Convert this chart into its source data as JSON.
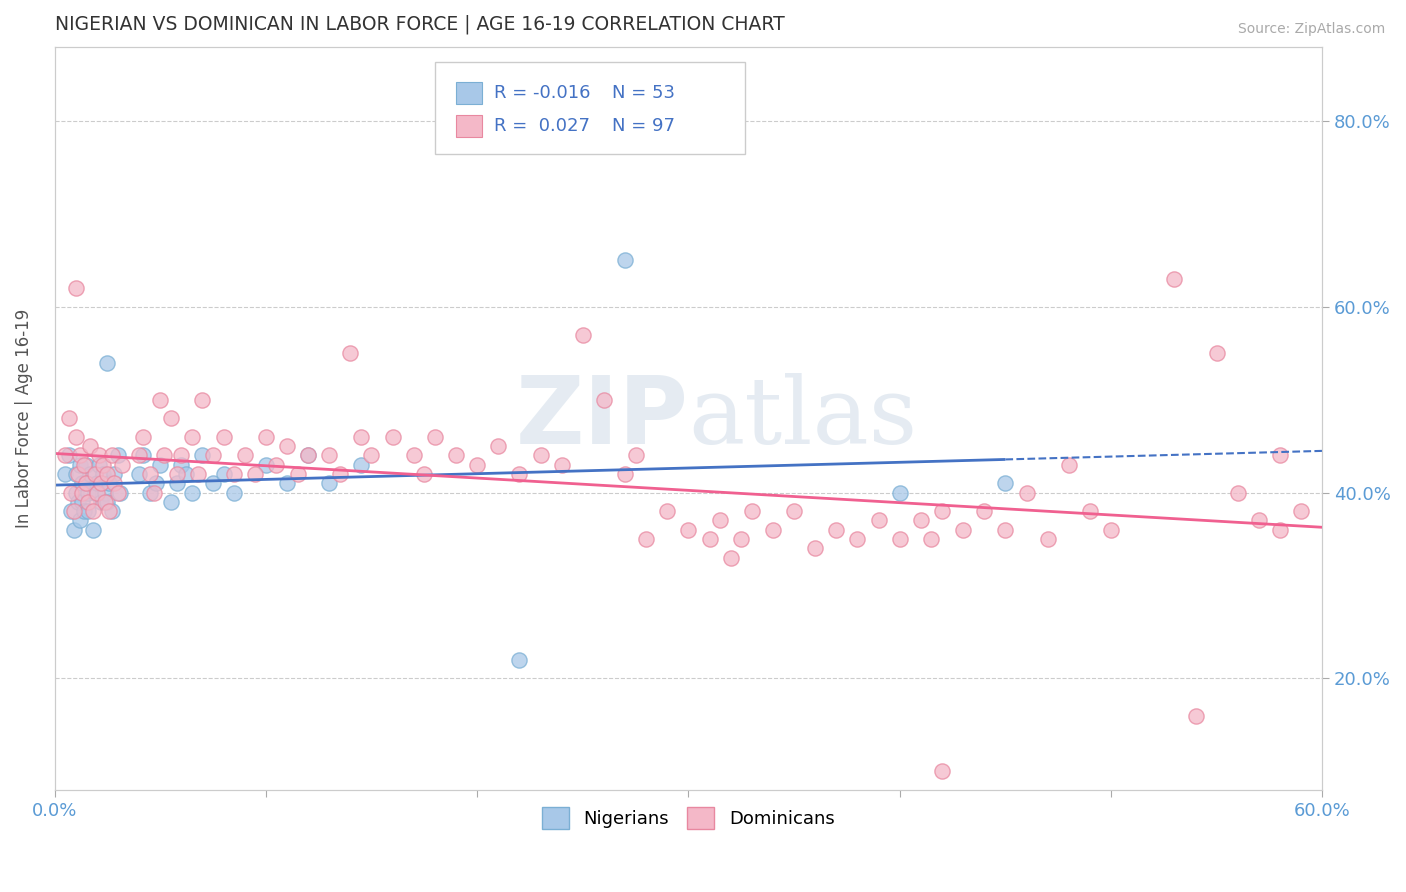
{
  "title": "NIGERIAN VS DOMINICAN IN LABOR FORCE | AGE 16-19 CORRELATION CHART",
  "source_text": "Source: ZipAtlas.com",
  "ylabel": "In Labor Force | Age 16-19",
  "xlim": [
    0.0,
    0.6
  ],
  "ylim": [
    0.08,
    0.88
  ],
  "nigerian_color": "#a8c8e8",
  "dominican_color": "#f4b8c8",
  "nigerian_line_color": "#4472c4",
  "dominican_line_color": "#f06090",
  "R_nigerian": -0.016,
  "N_nigerian": 53,
  "R_dominican": 0.027,
  "N_dominican": 97,
  "watermark": "ZIPatlas"
}
